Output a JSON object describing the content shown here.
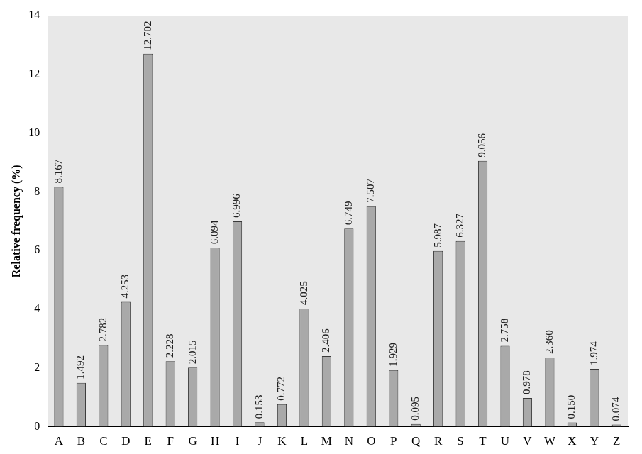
{
  "chart_data": {
    "type": "bar",
    "y_label": "Relative frequency (%)",
    "categories": [
      "A",
      "B",
      "C",
      "D",
      "E",
      "F",
      "G",
      "H",
      "I",
      "J",
      "K",
      "L",
      "M",
      "N",
      "O",
      "P",
      "Q",
      "R",
      "S",
      "T",
      "U",
      "V",
      "W",
      "X",
      "Y",
      "Z"
    ],
    "values": [
      8.167,
      1.492,
      2.782,
      4.253,
      12.702,
      2.228,
      2.015,
      6.094,
      6.996,
      0.153,
      0.772,
      4.025,
      2.406,
      6.749,
      7.507,
      1.929,
      0.095,
      5.987,
      6.327,
      9.056,
      2.758,
      0.978,
      2.36,
      0.15,
      1.974,
      0.074
    ],
    "value_labels": [
      "8.167",
      "1.492",
      "2.782",
      "4.253",
      "12.702",
      "2.228",
      "2.015",
      "6.094",
      "6.996",
      "0.153",
      "0.772",
      "4.025",
      "2.406",
      "6.749",
      "7.507",
      "1.929",
      "0.095",
      "5.987",
      "6.327",
      "9.056",
      "2.758",
      "0.978",
      "2.360",
      "0.150",
      "1.974",
      "0.074"
    ],
    "color": "#a9a9a9",
    "ylim": [
      0,
      14
    ],
    "yticks": [
      0,
      2,
      4,
      6,
      8,
      10,
      12,
      14
    ],
    "grid": false,
    "data_labels": true
  }
}
